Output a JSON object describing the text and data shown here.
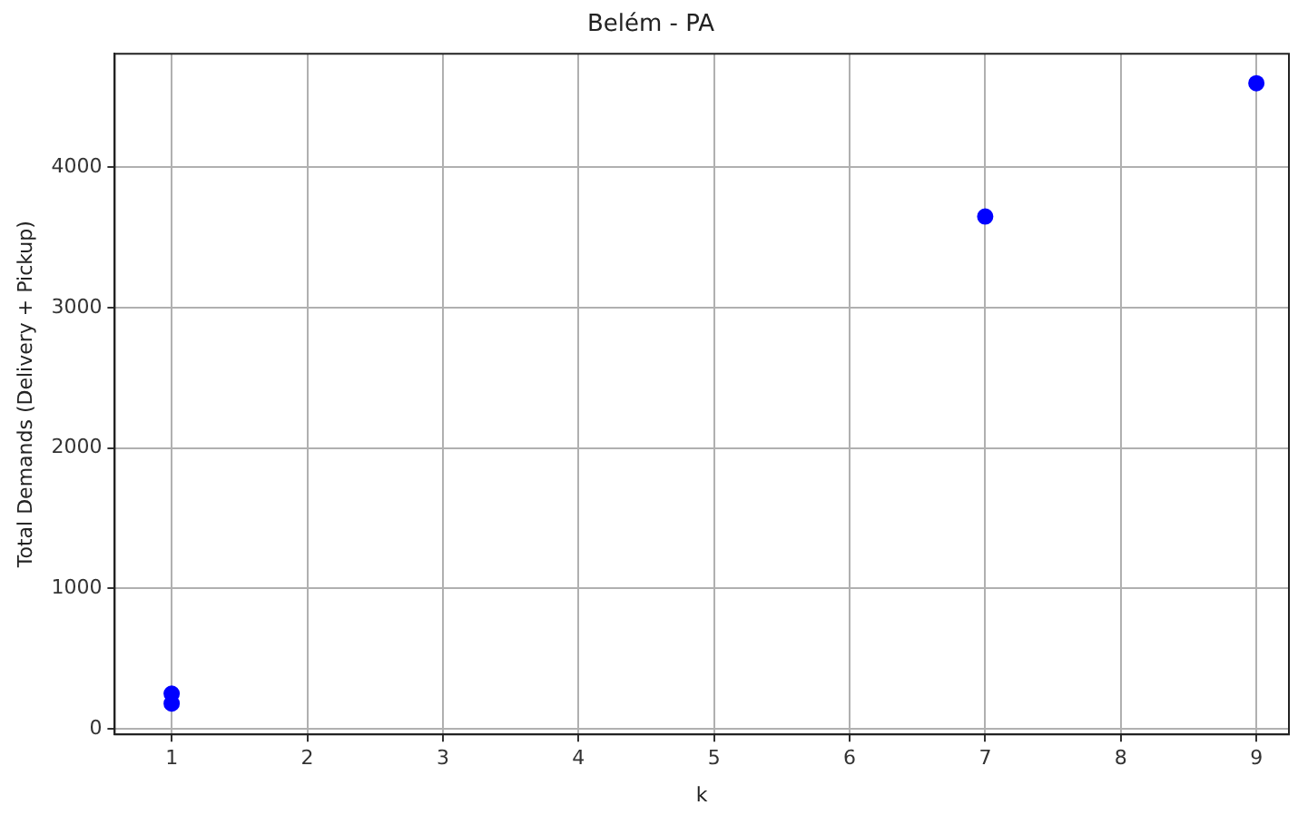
{
  "chart_data": {
    "type": "scatter",
    "title": "Belém - PA",
    "xlabel": "k",
    "ylabel": "Total Demands (Delivery + Pickup)",
    "x": [
      1,
      1,
      7,
      9
    ],
    "values": [
      250,
      180,
      3650,
      4600
    ],
    "color": "#0000ff",
    "marker": "circle",
    "xlim": [
      0.58,
      9.24
    ],
    "xticks": [
      1,
      2,
      3,
      4,
      5,
      6,
      7,
      8,
      9
    ],
    "ylim": [
      -40,
      4810
    ],
    "yticks": [
      0,
      1000,
      2000,
      3000,
      4000
    ],
    "grid": true
  }
}
